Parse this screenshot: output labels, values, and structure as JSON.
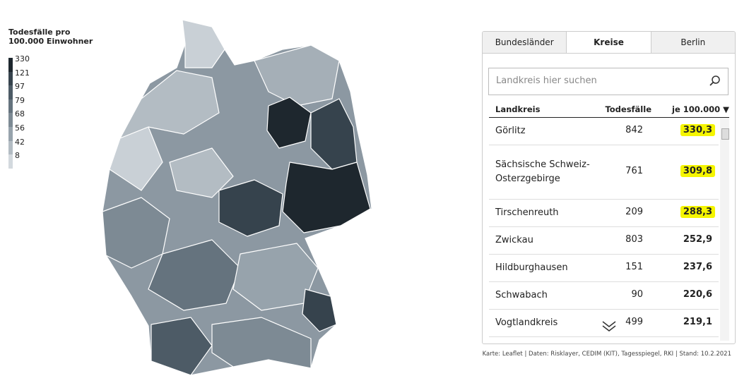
{
  "legend": {
    "title_line1": "Todesfälle pro",
    "title_line2": "100.000 Einwohner",
    "items": [
      {
        "label": "330",
        "color": "#1e272e"
      },
      {
        "label": "121",
        "color": "#36434d"
      },
      {
        "label": "97",
        "color": "#4d5b66"
      },
      {
        "label": "79",
        "color": "#65737e"
      },
      {
        "label": "68",
        "color": "#7d8a94"
      },
      {
        "label": "56",
        "color": "#97a3ac"
      },
      {
        "label": "42",
        "color": "#b3bcc3"
      },
      {
        "label": "8",
        "color": "#d3d9de"
      }
    ]
  },
  "tabs": [
    {
      "label": "Bundesländer",
      "active": false
    },
    {
      "label": "Kreise",
      "active": true
    },
    {
      "label": "Berlin",
      "active": false
    }
  ],
  "search": {
    "placeholder": "Landkreis hier suchen"
  },
  "table": {
    "headers": [
      "Landkreis",
      "Todesfälle",
      "je 100.000 ▼"
    ],
    "rows": [
      {
        "cells": [
          "Görlitz",
          "842",
          "330,3"
        ],
        "highlighted": true
      },
      {
        "cells": [
          "Sächsische Schweiz-Osterzgebirge",
          "761",
          "309,8"
        ],
        "highlighted": true
      },
      {
        "cells": [
          "Tirschenreuth",
          "209",
          "288,3"
        ],
        "highlighted": true
      },
      {
        "cells": [
          "Zwickau",
          "803",
          "252,9"
        ],
        "highlighted": false
      },
      {
        "cells": [
          "Hildburghausen",
          "151",
          "237,6"
        ],
        "highlighted": false
      },
      {
        "cells": [
          "Schwabach",
          "90",
          "220,6"
        ],
        "highlighted": false
      },
      {
        "cells": [
          "Vogtlandkreis",
          "499",
          "219,1"
        ],
        "highlighted": false
      }
    ]
  },
  "footer": "Karte: Leaflet | Daten: Risklayer, CEDIM (KIT), Tagesspiegel, RKI | Stand: 10.2.2021"
}
